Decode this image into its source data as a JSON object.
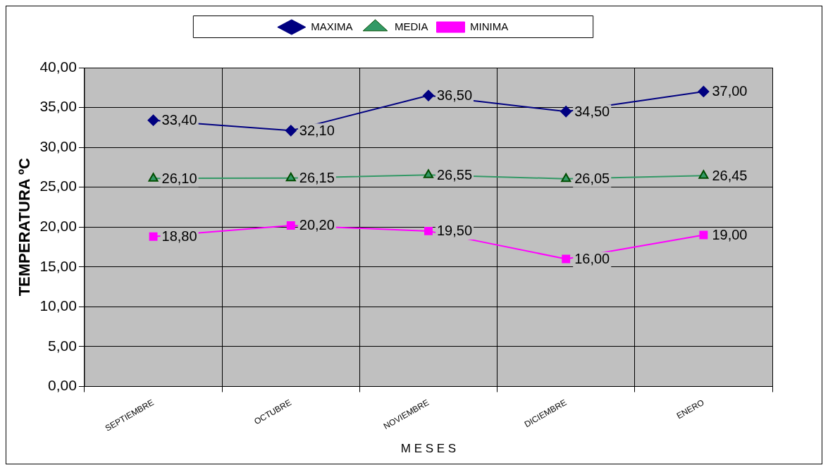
{
  "chart_data": {
    "type": "line",
    "xlabel": "M E S E S",
    "ylabel": "TEMPERATURA ºC",
    "categories": [
      "SEPTIEMBRE",
      "OCTUBRE",
      "NOVIEMBRE",
      "DICIEMBRE",
      "ENERO"
    ],
    "series": [
      {
        "name": "MAXIMA",
        "color": "#000080",
        "marker": "diamond",
        "values": [
          33.4,
          32.1,
          36.5,
          34.5,
          37.0
        ],
        "value_labels": [
          "33,40",
          "32,10",
          "36,50",
          "34,50",
          "37,00"
        ]
      },
      {
        "name": "MEDIA",
        "color": "#339966",
        "marker": "triangle",
        "values": [
          26.1,
          26.15,
          26.55,
          26.05,
          26.45
        ],
        "value_labels": [
          "26,10",
          "26,15",
          "26,55",
          "26,05",
          "26,45"
        ]
      },
      {
        "name": "MINIMA",
        "color": "#ff00ff",
        "marker": "square",
        "values": [
          18.8,
          20.2,
          19.5,
          16.0,
          19.0
        ],
        "value_labels": [
          "18,80",
          "20,20",
          "19,50",
          "16,00",
          "19,00"
        ]
      }
    ],
    "ylim": [
      0,
      40
    ],
    "yticks": [
      {
        "value": 0,
        "label": "0,00"
      },
      {
        "value": 5,
        "label": "5,00"
      },
      {
        "value": 10,
        "label": "10,00"
      },
      {
        "value": 15,
        "label": "15,00"
      },
      {
        "value": 20,
        "label": "20,00"
      },
      {
        "value": 25,
        "label": "25,00"
      },
      {
        "value": 30,
        "label": "30,00"
      },
      {
        "value": 35,
        "label": "35,00"
      },
      {
        "value": 40,
        "label": "40,00"
      }
    ],
    "grid": true,
    "legend": "top",
    "line_style": "solid"
  }
}
